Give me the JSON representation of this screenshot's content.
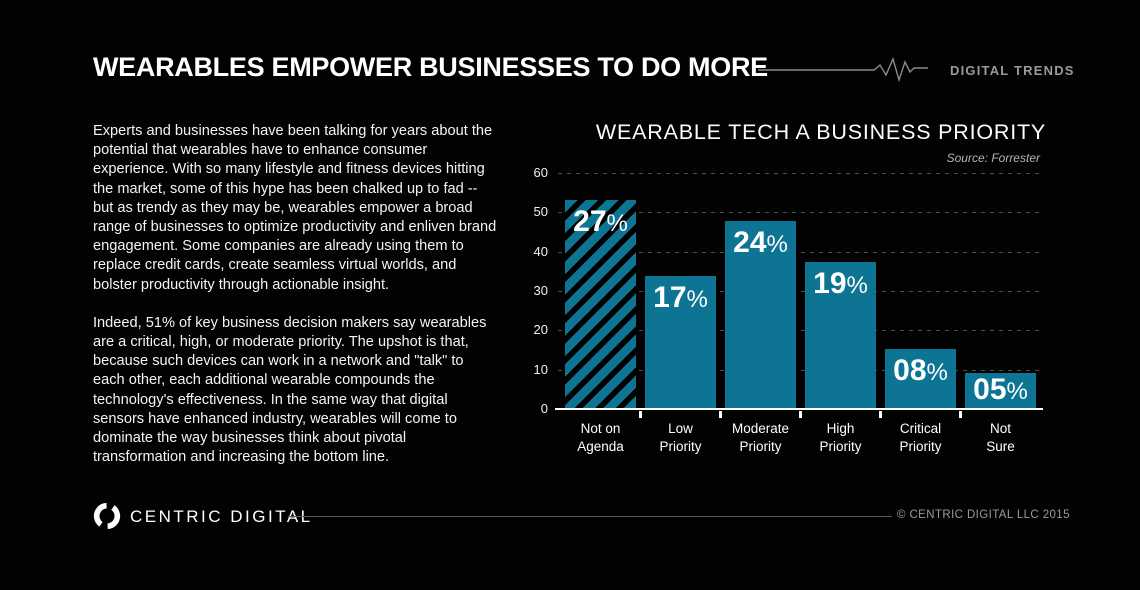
{
  "colors": {
    "background": "#020202",
    "bar_teal": "#0d7493",
    "grid_gray": "#4e4e4e",
    "muted_text": "#9a9a9a",
    "white": "#ffffff"
  },
  "icons": {
    "header_pulse": "pulse-line-icon",
    "footer_logo": "centric-digital-ring-logo"
  },
  "header": {
    "title": "WEARABLES EMPOWER BUSINESSES TO DO MORE",
    "brand_tag": "DIGITAL TRENDS"
  },
  "intro": {
    "paragraph1": "Experts and businesses have been talking for years about the potential that wearables have to enhance consumer experience. With so many lifestyle and fitness devices hitting the market, some of this hype has been chalked up to fad -- but as trendy as they may be, wearables empower a broad range of businesses to optimize productivity and enliven brand engagement. Some companies are already using them to replace credit cards, create seamless virtual worlds, and bolster productivity through actionable insight.",
    "paragraph2": "Indeed, 51% of key business decision makers say wearables are a critical, high, or moderate priority. The upshot is that, because such devices can work in a network and \"talk\" to each other, each additional wearable compounds the technology's effectiveness. In the same way that digital sensors have enhanced industry, wearables will come to dominate the way businesses think about pivotal transformation and increasing the bottom line."
  },
  "chart_data": {
    "type": "bar",
    "title": "WEARABLE TECH A BUSINESS PRIORITY",
    "source": "Source:  Forrester",
    "categories": [
      "Not on Agenda",
      "Low Priority",
      "Moderate Priority",
      "High Priority",
      "Critical Priority",
      "Not Sure"
    ],
    "categories_lines": [
      [
        "Not on",
        "Agenda"
      ],
      [
        "Low",
        "Priority"
      ],
      [
        "Moderate",
        "Priority"
      ],
      [
        "High",
        "Priority"
      ],
      [
        "Critical",
        "Priority"
      ],
      [
        "Not",
        "Sure"
      ]
    ],
    "values_percent": [
      27,
      17,
      24,
      19,
      8,
      5
    ],
    "labels": [
      "27%",
      "17%",
      "24%",
      "19%",
      "08%",
      "05%"
    ],
    "plotted_heights": [
      53,
      33.5,
      47.5,
      37,
      15,
      9
    ],
    "y_ticks": [
      0,
      10,
      20,
      30,
      40,
      50,
      60
    ],
    "ylim": [
      0,
      60
    ],
    "grid": "dashed-horizontal",
    "legend": "none",
    "bar_color": "#0d7493",
    "hatched_index": 0
  },
  "footer": {
    "brand": "CENTRIC DIGITAL",
    "copyright": "© CENTRIC DIGITAL LLC 2015"
  }
}
